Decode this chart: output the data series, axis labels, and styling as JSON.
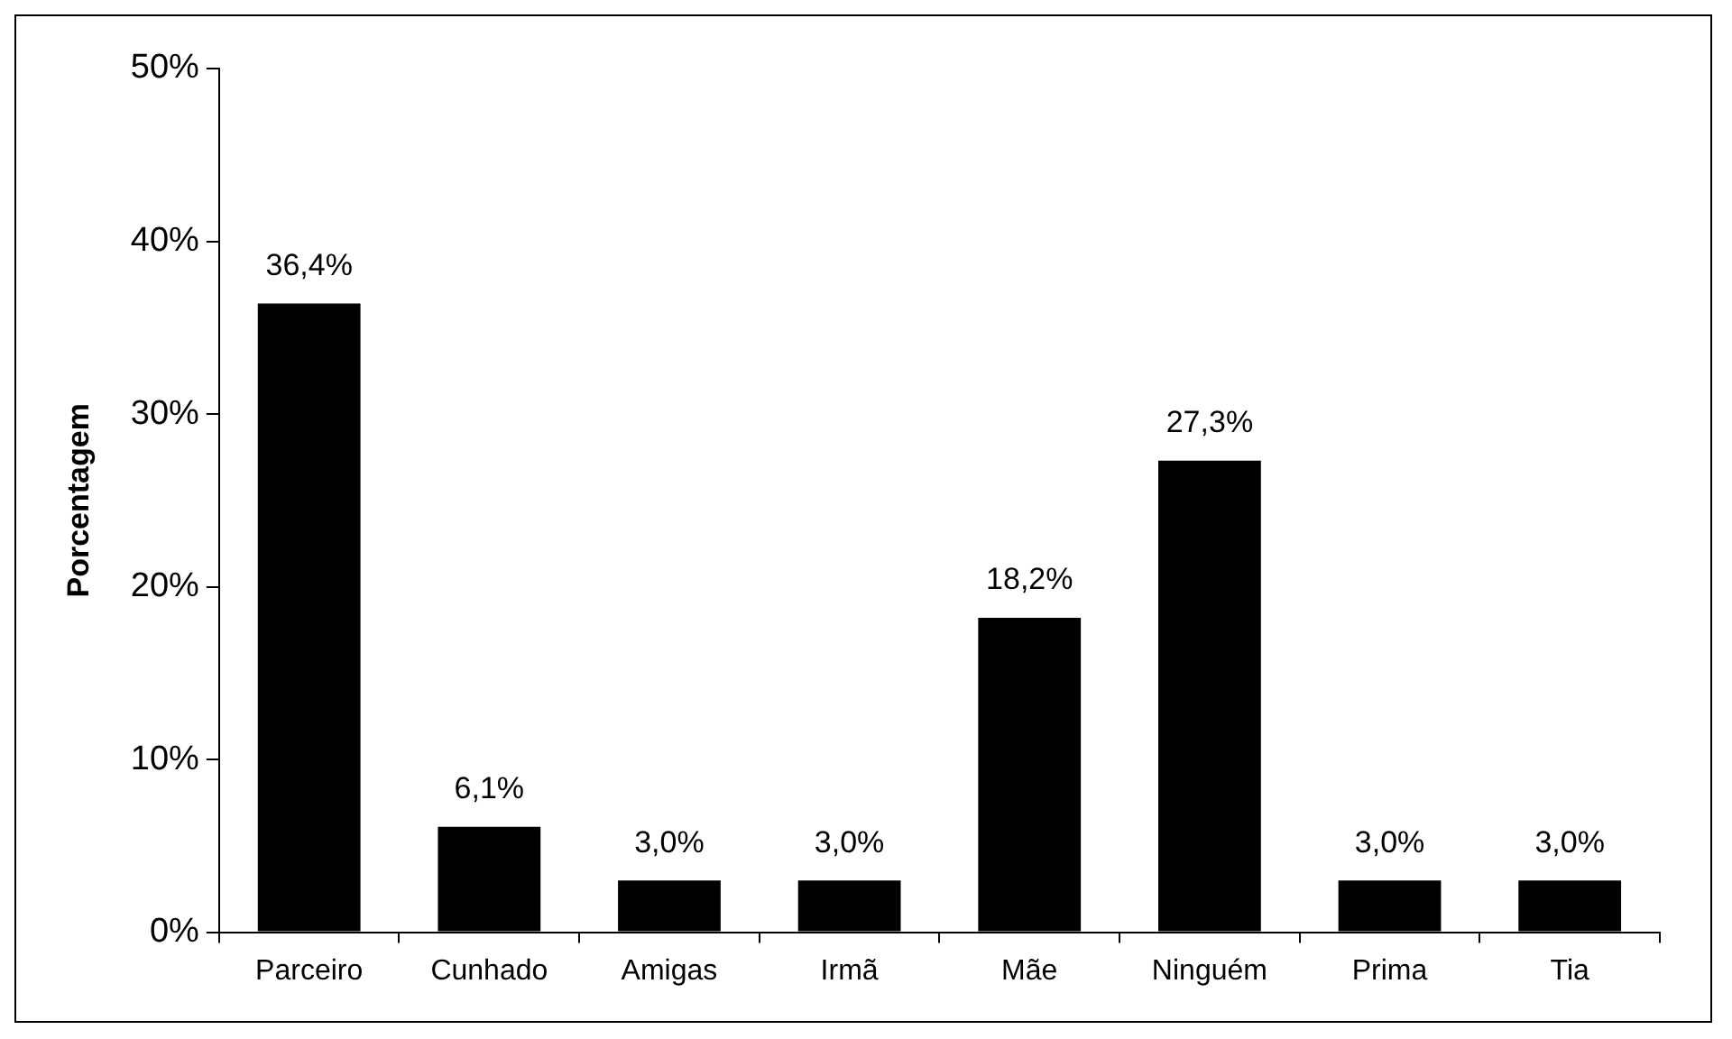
{
  "chart_data": {
    "type": "bar",
    "ylabel": "Porcentagem",
    "categories": [
      "Parceiro",
      "Cunhado",
      "Amigas",
      "Irmã",
      "Mãe",
      "Ninguém",
      "Prima",
      "Tia"
    ],
    "values": [
      36.4,
      6.1,
      3.0,
      3.0,
      18.2,
      27.3,
      3.0,
      3.0
    ],
    "value_labels": [
      "36,4%",
      "6,1%",
      "3,0%",
      "3,0%",
      "18,2%",
      "27,3%",
      "3,0%",
      "3,0%"
    ],
    "color": "#000000",
    "ylim": [
      0,
      50
    ],
    "yticks": [
      {
        "value": 0,
        "label": "0%"
      },
      {
        "value": 10,
        "label": "10%"
      },
      {
        "value": 20,
        "label": "20%"
      },
      {
        "value": 30,
        "label": "30%"
      },
      {
        "value": 40,
        "label": "40%"
      },
      {
        "value": 50,
        "label": "50%"
      }
    ],
    "grid": false,
    "legend": false
  }
}
